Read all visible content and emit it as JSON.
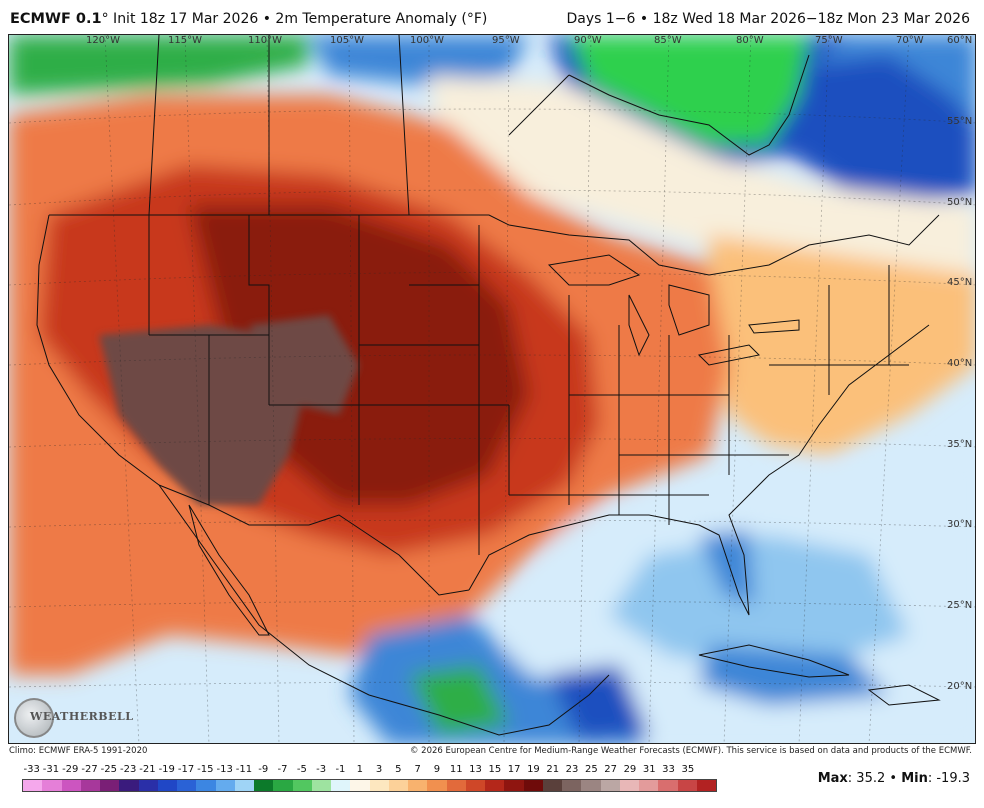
{
  "header": {
    "model": "ECMWF 0.1",
    "init": "° Init 18z 17 Mar 2026 • 2m Temperature Anomaly (°F)",
    "range": "Days 1−6 • 18z Wed 18 Mar 2026−18z Mon 23 Mar 2026"
  },
  "map": {
    "longitude_labels": [
      "120°W",
      "115°W",
      "110°W",
      "105°W",
      "100°W",
      "95°W",
      "90°W",
      "85°W",
      "80°W",
      "75°W",
      "70°W"
    ],
    "latitude_labels": [
      "60°N",
      "55°N",
      "50°N",
      "45°N",
      "40°N",
      "35°N",
      "30°N",
      "25°N",
      "20°N"
    ],
    "colors": {
      "extreme_warm": "#6e4a44",
      "very_warm": "#8a1e10",
      "warm": "#c8391f",
      "mild_warm": "#ee7a46",
      "slight_warm": "#fbc07a",
      "near_normal": "#f8efdc",
      "slight_cool": "#d6ecfb",
      "cool": "#8fc6ef",
      "colder": "#3d86d7",
      "cold": "#1e4fbf",
      "very_cold": "#2fae47",
      "coldest": "#2ed04e"
    }
  },
  "logo": {
    "text": "WEATHERBELL"
  },
  "footer": {
    "climo": "Climo: ECMWF ERA-5 1991-2020",
    "copyright": "© 2026 European Centre for Medium-Range Weather Forecasts (ECMWF). This service is based on data and products of the ECMWF."
  },
  "colorbar": {
    "labels": [
      "-33",
      "-31",
      "-29",
      "-27",
      "-25",
      "-23",
      "-21",
      "-19",
      "-17",
      "-15",
      "-13",
      "-11",
      "-9",
      "-7",
      "-5",
      "-3",
      "-1",
      "1",
      "3",
      "5",
      "7",
      "9",
      "11",
      "13",
      "15",
      "17",
      "19",
      "21",
      "23",
      "25",
      "27",
      "29",
      "31",
      "33",
      "35"
    ],
    "colors": [
      "#f5a8ec",
      "#e57fd8",
      "#cc55c0",
      "#a7389b",
      "#7a1f76",
      "#3a1b7d",
      "#2a2fa8",
      "#2047c6",
      "#2a62d6",
      "#3c86e2",
      "#64abee",
      "#9fd4f6",
      "#0c7a2a",
      "#2aa843",
      "#52c760",
      "#9ee3a0",
      "#dff5fb",
      "#fdf6e8",
      "#fde7bf",
      "#fcd199",
      "#f8b26e",
      "#f1904f",
      "#e26a3b",
      "#cf4728",
      "#b4271a",
      "#8f1510",
      "#6f0b0a",
      "#5a403b",
      "#7c6460",
      "#9b8582",
      "#bba7a4",
      "#e8b7b7",
      "#e39b9b",
      "#d96e6e",
      "#c84545",
      "#b22222"
    ]
  },
  "stats": {
    "max_label": "Max",
    "max_value": ": 35.2 • ",
    "min_label": "Min",
    "min_value": ": -19.3"
  }
}
